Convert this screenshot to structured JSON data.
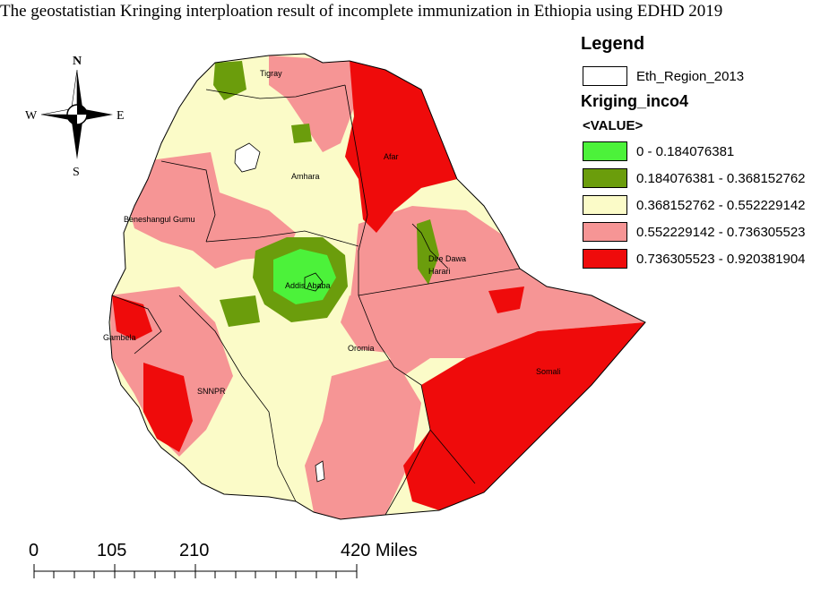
{
  "title": "The geostatistian Kringing  interploation result  of incomplete immunization in Ethiopia using EDHD 2019",
  "north_arrow": {
    "icon": "compass-rose-icon",
    "n": "N",
    "s": "S",
    "e": "E",
    "w": "W"
  },
  "legend": {
    "title": "Legend",
    "boundary_layer": "Eth_Region_2013",
    "raster_layer": "Kriging_inco4",
    "field": "<VALUE>",
    "classes": [
      {
        "label": "0 - 0.184076381",
        "color": "#4cf23a"
      },
      {
        "label": "0.184076381 - 0.368152762",
        "color": "#6b9d0c"
      },
      {
        "label": "0.368152762 - 0.552229142",
        "color": "#fbfbc8"
      },
      {
        "label": "0.552229142 - 0.736305523",
        "color": "#f69595"
      },
      {
        "label": "0.736305523 - 0.920381904",
        "color": "#ef0b0b"
      }
    ]
  },
  "regions": {
    "tigray": "Tigray",
    "afar": "Afar",
    "amhara": "Amhara",
    "benishangul": "Beneshangul Gumu",
    "addis": "Addis Ababa",
    "dire": "Dire Dawa",
    "harari": "Harari",
    "oromia": "Oromia",
    "gambela": "Gambela",
    "snnpr": "SNNPR",
    "somali": "Somali"
  },
  "scale_bar": {
    "labels": [
      "0",
      "105",
      "210",
      "420 Miles"
    ]
  }
}
